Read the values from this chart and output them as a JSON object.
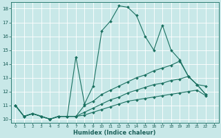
{
  "xlabel": "Humidex (Indice chaleur)",
  "bg_color": "#c8e8e8",
  "grid_color": "#ffffff",
  "line_color": "#1a7060",
  "xlim_min": -0.5,
  "xlim_max": 23.5,
  "ylim_min": 9.75,
  "ylim_max": 18.45,
  "yticks": [
    10,
    11,
    12,
    13,
    14,
    15,
    16,
    17,
    18
  ],
  "xticks": [
    0,
    1,
    2,
    3,
    4,
    5,
    6,
    7,
    8,
    9,
    10,
    11,
    12,
    13,
    14,
    15,
    16,
    17,
    18,
    19,
    20,
    21,
    22,
    23
  ],
  "series": [
    {
      "x": [
        0,
        1,
        2,
        3,
        4,
        5,
        6,
        7,
        8,
        9,
        10,
        11,
        12,
        13,
        14,
        15,
        16,
        17,
        18,
        19,
        20,
        21,
        22
      ],
      "y": [
        11.0,
        10.2,
        10.4,
        10.2,
        10.0,
        10.2,
        10.2,
        14.5,
        11.1,
        12.4,
        16.4,
        17.1,
        18.2,
        18.1,
        17.5,
        16.0,
        15.0,
        16.8,
        15.0,
        14.3,
        13.1,
        12.5,
        12.4
      ]
    },
    {
      "x": [
        0,
        1,
        2,
        3,
        4,
        5,
        6,
        7,
        8,
        9,
        10,
        11,
        12,
        13,
        14,
        15,
        16,
        17,
        18,
        19,
        20,
        21,
        22
      ],
      "y": [
        11.0,
        10.2,
        10.4,
        10.2,
        10.0,
        10.2,
        10.2,
        10.2,
        11.0,
        11.3,
        11.8,
        12.1,
        12.4,
        12.7,
        13.0,
        13.2,
        13.5,
        13.7,
        13.9,
        14.2,
        13.1,
        12.5,
        11.8
      ]
    },
    {
      "x": [
        0,
        1,
        2,
        3,
        4,
        5,
        6,
        7,
        8,
        9,
        10,
        11,
        12,
        13,
        14,
        15,
        16,
        17,
        18,
        19,
        20,
        21,
        22
      ],
      "y": [
        11.0,
        10.2,
        10.4,
        10.2,
        10.0,
        10.2,
        10.2,
        10.2,
        10.5,
        10.8,
        11.1,
        11.4,
        11.6,
        11.9,
        12.1,
        12.3,
        12.5,
        12.6,
        12.8,
        12.9,
        13.1,
        12.5,
        11.8
      ]
    },
    {
      "x": [
        0,
        1,
        2,
        3,
        4,
        5,
        6,
        7,
        8,
        9,
        10,
        11,
        12,
        13,
        14,
        15,
        16,
        17,
        18,
        19,
        20,
        21,
        22
      ],
      "y": [
        11.0,
        10.2,
        10.4,
        10.2,
        10.0,
        10.2,
        10.2,
        10.2,
        10.3,
        10.5,
        10.7,
        10.9,
        11.1,
        11.3,
        11.4,
        11.5,
        11.6,
        11.7,
        11.8,
        11.9,
        12.0,
        12.1,
        11.7
      ]
    }
  ]
}
